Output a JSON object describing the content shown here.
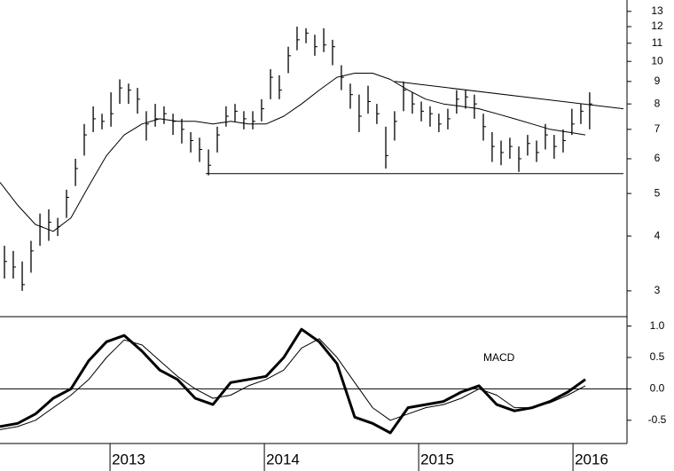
{
  "chart_data": [
    {
      "type": "ohlc",
      "color": "#000000",
      "log_scale": true,
      "xlim": [
        2012.287,
        2016.35
      ],
      "ylim": [
        2.62,
        13.8
      ],
      "yticks": [
        3,
        4,
        5,
        6,
        7,
        8,
        9,
        10,
        11,
        12,
        13
      ],
      "x": [
        2012.316,
        2012.373,
        2012.431,
        2012.488,
        2012.546,
        2012.603,
        2012.661,
        2012.718,
        2012.776,
        2012.833,
        2012.891,
        2012.948,
        2013.006,
        2013.063,
        2013.12,
        2013.178,
        2013.235,
        2013.293,
        2013.35,
        2013.408,
        2013.465,
        2013.523,
        2013.58,
        2013.638,
        2013.695,
        2013.752,
        2013.81,
        2013.867,
        2013.925,
        2013.982,
        2014.04,
        2014.097,
        2014.155,
        2014.212,
        2014.27,
        2014.327,
        2014.385,
        2014.442,
        2014.499,
        2014.557,
        2014.614,
        2014.672,
        2014.729,
        2014.787,
        2014.844,
        2014.902,
        2014.959,
        2015.017,
        2015.074,
        2015.131,
        2015.189,
        2015.246,
        2015.304,
        2015.361,
        2015.419,
        2015.476,
        2015.534,
        2015.591,
        2015.649,
        2015.706,
        2015.764,
        2015.821,
        2015.878,
        2015.936,
        2015.993,
        2016.051,
        2016.108
      ],
      "high": [
        3.8,
        3.7,
        3.5,
        3.9,
        4.5,
        4.6,
        4.4,
        5.1,
        6.0,
        7.2,
        7.9,
        7.6,
        8.5,
        9.1,
        8.9,
        8.7,
        7.7,
        8.0,
        7.9,
        7.6,
        7.4,
        6.9,
        6.7,
        6.3,
        7.1,
        7.9,
        8.0,
        7.7,
        7.7,
        8.2,
        9.6,
        9.3,
        10.8,
        12.0,
        11.9,
        11.5,
        11.9,
        11.2,
        9.8,
        8.9,
        8.4,
        8.8,
        8.0,
        7.1,
        7.7,
        9.0,
        8.5,
        8.1,
        7.9,
        7.6,
        7.8,
        8.6,
        8.6,
        8.4,
        7.6,
        6.9,
        6.6,
        6.7,
        6.4,
        6.8,
        6.6,
        7.2,
        6.8,
        7.0,
        7.8,
        8.0,
        8.5
      ],
      "low": [
        3.2,
        3.2,
        3.0,
        3.3,
        3.8,
        3.9,
        4.0,
        4.4,
        5.2,
        6.1,
        6.9,
        7.0,
        7.1,
        8.0,
        8.0,
        7.6,
        6.6,
        7.1,
        7.2,
        6.8,
        6.5,
        6.2,
        5.9,
        5.5,
        6.2,
        7.1,
        7.3,
        7.0,
        7.0,
        7.3,
        8.2,
        8.2,
        9.4,
        10.6,
        11.0,
        10.3,
        10.5,
        9.8,
        8.6,
        7.8,
        6.9,
        7.6,
        7.2,
        5.7,
        6.6,
        7.7,
        7.6,
        7.3,
        7.1,
        6.9,
        7.0,
        7.6,
        7.8,
        7.4,
        6.6,
        5.9,
        5.8,
        6.0,
        5.6,
        6.1,
        5.9,
        6.3,
        6.0,
        6.2,
        6.8,
        7.2,
        7.0
      ],
      "close": [
        3.5,
        3.4,
        3.1,
        3.7,
        4.2,
        4.3,
        4.2,
        4.9,
        5.7,
        6.8,
        7.4,
        7.3,
        7.6,
        8.7,
        8.6,
        8.2,
        7.2,
        7.4,
        7.6,
        7.3,
        7.0,
        6.6,
        6.3,
        5.8,
        6.8,
        7.5,
        7.7,
        7.4,
        7.3,
        7.8,
        9.2,
        8.6,
        10.3,
        11.2,
        11.6,
        10.8,
        10.9,
        10.8,
        9.2,
        8.4,
        7.5,
        8.1,
        7.6,
        6.1,
        7.3,
        8.6,
        8.0,
        7.7,
        7.6,
        7.2,
        7.4,
        8.2,
        8.3,
        8.0,
        7.1,
        6.4,
        6.2,
        6.4,
        6.0,
        6.5,
        6.2,
        6.8,
        6.4,
        6.6,
        7.2,
        7.7,
        8.0
      ],
      "overlays": [
        {
          "color": "#000000",
          "width": 1,
          "x": [
            2012.287,
            2012.402,
            2012.517,
            2012.632,
            2012.747,
            2012.862,
            2012.977,
            2013.092,
            2013.207,
            2013.322,
            2013.437,
            2013.552,
            2013.667,
            2013.782,
            2013.897,
            2014.011,
            2014.126,
            2014.241,
            2014.356,
            2014.471,
            2014.586,
            2014.701,
            2014.816,
            2014.931,
            2015.046,
            2015.161,
            2015.276,
            2015.391,
            2015.506,
            2015.621,
            2015.736,
            2015.851,
            2015.966,
            2016.08
          ],
          "values": [
            5.3,
            4.7,
            4.25,
            4.1,
            4.4,
            5.2,
            6.1,
            6.8,
            7.2,
            7.4,
            7.3,
            7.3,
            7.2,
            7.3,
            7.2,
            7.2,
            7.5,
            8.0,
            8.6,
            9.2,
            9.4,
            9.4,
            9.1,
            8.6,
            8.2,
            8.0,
            7.9,
            7.8,
            7.6,
            7.4,
            7.2,
            7.0,
            6.9,
            6.8
          ]
        },
        {
          "color": "#000000",
          "width": 1,
          "x": [
            2013.62,
            2016.327
          ],
          "values": [
            5.55,
            5.55
          ]
        },
        {
          "color": "#000000",
          "width": 1,
          "x": [
            2014.845,
            2016.327
          ],
          "values": [
            9.0,
            7.8
          ]
        }
      ]
    },
    {
      "type": "line",
      "annotation": "MACD",
      "xlim": [
        2012.287,
        2016.35
      ],
      "ylim": [
        -0.87,
        1.15
      ],
      "yticks": [
        {
          "value": 1,
          "label": "1.0"
        },
        {
          "value": 0.5,
          "label": "0.5"
        },
        {
          "value": 0,
          "label": "0.0"
        },
        {
          "value": -0.5,
          "label": "-0.5"
        }
      ],
      "xticks": [
        2013,
        2014,
        2015,
        2016
      ],
      "reference_line": 0,
      "x": [
        2012.287,
        2012.402,
        2012.517,
        2012.632,
        2012.747,
        2012.862,
        2012.977,
        2013.092,
        2013.207,
        2013.322,
        2013.437,
        2013.552,
        2013.667,
        2013.782,
        2013.897,
        2014.011,
        2014.126,
        2014.241,
        2014.356,
        2014.471,
        2014.586,
        2014.701,
        2014.816,
        2014.931,
        2015.046,
        2015.161,
        2015.276,
        2015.391,
        2015.506,
        2015.621,
        2015.736,
        2015.851,
        2015.966,
        2016.08
      ],
      "series": [
        {
          "color": "#000000",
          "width": 3,
          "values": [
            -0.6,
            -0.55,
            -0.4,
            -0.15,
            0.0,
            0.45,
            0.75,
            0.85,
            0.6,
            0.3,
            0.15,
            -0.15,
            -0.25,
            0.1,
            0.15,
            0.2,
            0.5,
            0.95,
            0.75,
            0.4,
            -0.45,
            -0.55,
            -0.7,
            -0.3,
            -0.25,
            -0.2,
            -0.05,
            0.05,
            -0.25,
            -0.35,
            -0.3,
            -0.2,
            -0.05,
            0.15
          ]
        },
        {
          "color": "#000000",
          "width": 1,
          "values": [
            -0.65,
            -0.6,
            -0.5,
            -0.3,
            -0.1,
            0.15,
            0.5,
            0.78,
            0.7,
            0.45,
            0.2,
            0.0,
            -0.15,
            -0.1,
            0.05,
            0.15,
            0.3,
            0.65,
            0.8,
            0.5,
            0.1,
            -0.3,
            -0.5,
            -0.4,
            -0.3,
            -0.25,
            -0.15,
            0.0,
            -0.1,
            -0.3,
            -0.3,
            -0.22,
            -0.1,
            0.05
          ]
        }
      ]
    }
  ]
}
